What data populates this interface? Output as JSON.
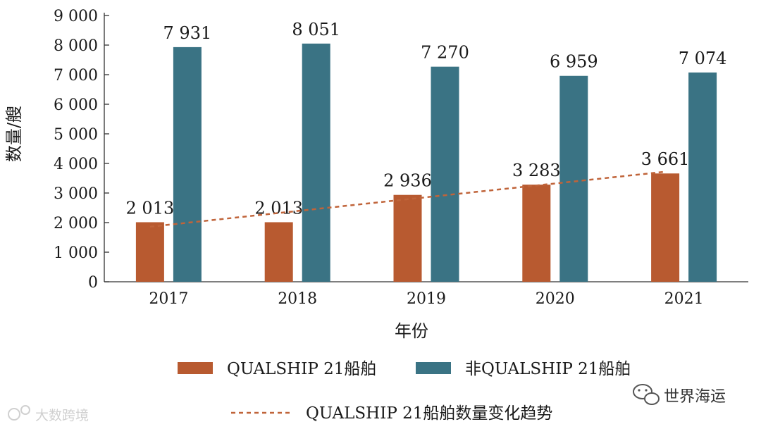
{
  "chart_data": {
    "type": "bar",
    "categories": [
      "2017",
      "2018",
      "2019",
      "2020",
      "2021"
    ],
    "series": [
      {
        "name": "QUALSHIP 21船舶",
        "color": "#b85a30",
        "values": [
          2013,
          2013,
          2936,
          3283,
          3661
        ],
        "value_labels": [
          "2 013",
          "2 013",
          "2 936",
          "3 283",
          "3 661"
        ]
      },
      {
        "name": "非QUALSHIP 21船舶",
        "color": "#3a7384",
        "values": [
          7931,
          8051,
          7270,
          6959,
          7074
        ],
        "value_labels": [
          "7 931",
          "8 051",
          "7 270",
          "6 959",
          "7 074"
        ]
      }
    ],
    "trend": {
      "name": "QUALSHIP 21船舶数量变化趋势",
      "color": "#c0643a",
      "style": "dashed",
      "start_value": 1860,
      "end_value": 3720
    },
    "xlabel": "年份",
    "ylabel": "数量/艘",
    "ylim": [
      0,
      9000
    ],
    "yticks": [
      0,
      1000,
      2000,
      3000,
      4000,
      5000,
      6000,
      7000,
      8000,
      9000
    ],
    "ytick_labels": [
      "0",
      "1 000",
      "2 000",
      "3 000",
      "4 000",
      "5 000",
      "6 000",
      "7 000",
      "8 000",
      "9 000"
    ],
    "legend_position": "bottom"
  },
  "watermarks": {
    "bottom_left": "大数跨境",
    "bottom_right": "世界海运"
  }
}
